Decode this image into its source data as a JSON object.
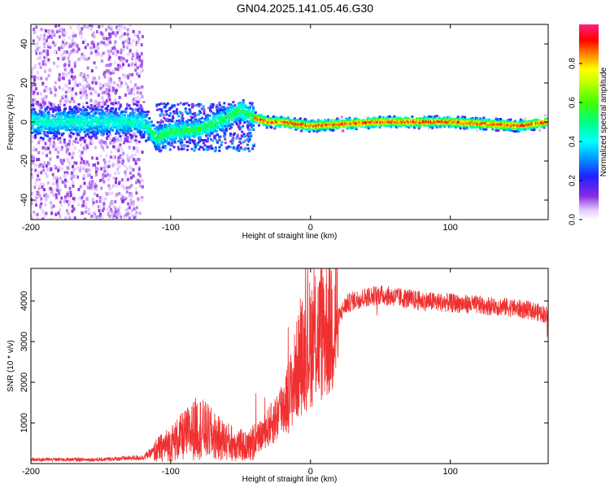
{
  "title": "GN04.2025.141.05.46.G30",
  "colors": {
    "snr_line": "#f03030",
    "spectrogram_background": "#ffffff",
    "dense_band": "#3a10ff"
  },
  "chart_data": [
    {
      "type": "heatmap",
      "title": "",
      "xlabel": "Height of straight line (km)",
      "ylabel": "Frequency (Hz)",
      "xlim": [
        -200,
        170
      ],
      "ylim": [
        -50,
        50
      ],
      "x_ticks": [
        -200,
        -100,
        0,
        100
      ],
      "y_ticks": [
        -40,
        -20,
        0,
        20,
        40
      ],
      "grid": false,
      "colorbar": {
        "label": "Normalized spectral amplitude",
        "range": [
          0,
          1
        ],
        "ticks": [
          0.0,
          0.2,
          0.4,
          0.6,
          0.8
        ],
        "colormap": "rainbow (purple-blue-cyan-green-yellow-red-magenta)"
      },
      "ridge": {
        "description": "peak frequency track vs height",
        "x": [
          -200,
          -150,
          -120,
          -110,
          -100,
          -80,
          -60,
          -50,
          -40,
          -30,
          -20,
          0,
          50,
          100,
          150,
          170
        ],
        "y": [
          0,
          0,
          0,
          -8,
          -5,
          -4,
          2,
          6,
          2,
          0,
          0,
          -2,
          0,
          0,
          -2,
          0
        ]
      },
      "scatter_regions": [
        {
          "x_range": [
            -200,
            -120
          ],
          "y_range": [
            -50,
            50
          ],
          "amplitude": 0.1
        },
        {
          "x_range": [
            -110,
            -40
          ],
          "y_range": [
            -15,
            10
          ],
          "amplitude": 0.3
        }
      ]
    },
    {
      "type": "line",
      "title": "",
      "xlabel": "Height of straight line (km)",
      "ylabel": "SNR (10 * v/v)",
      "xlim": [
        -200,
        170
      ],
      "ylim": [
        0,
        4800
      ],
      "x_ticks": [
        -200,
        -100,
        0,
        100
      ],
      "y_ticks": [
        1000,
        2000,
        3000,
        4000
      ],
      "grid": false,
      "series": [
        {
          "name": "",
          "x": [
            -200,
            -150,
            -120,
            -112,
            -100,
            -90,
            -80,
            -72,
            -65,
            -55,
            -45,
            -35,
            -25,
            -15,
            -8,
            0,
            10,
            20,
            25,
            30,
            40,
            50,
            60,
            80,
            100,
            120,
            140,
            160,
            170
          ],
          "y": [
            100,
            100,
            150,
            300,
            500,
            700,
            900,
            750,
            600,
            500,
            400,
            700,
            1100,
            1700,
            2500,
            3000,
            3300,
            3600,
            3900,
            4000,
            4100,
            4150,
            4100,
            4000,
            3950,
            3900,
            3850,
            3750,
            3650
          ]
        }
      ]
    }
  ]
}
